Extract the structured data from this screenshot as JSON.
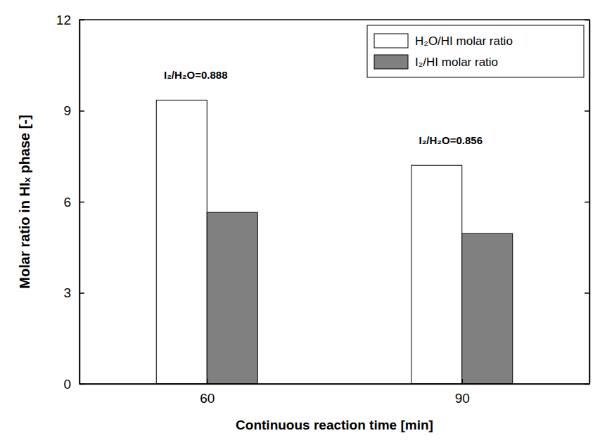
{
  "chart_data": {
    "type": "bar",
    "x_label": "Continuous reaction time [min]",
    "y_label": "Molar ratio in HIₓ phase [-]",
    "categories": [
      "60",
      "90"
    ],
    "series": [
      {
        "name": "H₂O/HI molar ratio",
        "color": "#ffffff",
        "values": [
          9.35,
          7.2
        ]
      },
      {
        "name": "I₂/HI molar ratio",
        "color": "#808080",
        "values": [
          5.65,
          4.95
        ]
      }
    ],
    "annotations": [
      "I₂/H₂O=0.888",
      "I₂/H₂O=0.856"
    ],
    "ylim": [
      0,
      12
    ],
    "yticks": [
      0,
      3,
      6,
      9,
      12
    ],
    "grid": false,
    "legend": "upper right"
  }
}
